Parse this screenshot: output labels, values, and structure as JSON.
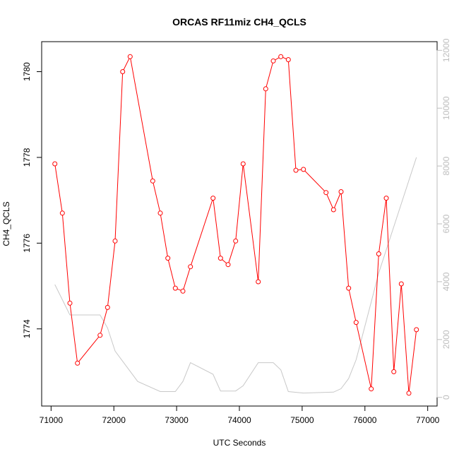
{
  "chart_data": {
    "type": "line",
    "title": "ORCAS RF11miz CH4_QCLS",
    "xlabel": "UTC Seconds",
    "ylabel": "CH4_QCLS",
    "xlim": [
      70850,
      77150
    ],
    "ylim": [
      1772.2,
      1780.7
    ],
    "y2lim": [
      -300,
      12300
    ],
    "x_ticks": [
      71000,
      72000,
      73000,
      74000,
      75000,
      76000,
      77000
    ],
    "y_ticks": [
      1774,
      1776,
      1778,
      1780
    ],
    "y2_ticks": [
      0,
      2000,
      4000,
      6000,
      8000,
      10000,
      12000
    ],
    "grid": false,
    "legend": "none",
    "series": [
      {
        "axis": "left",
        "style": "line-points",
        "color": "#ff0000",
        "x": [
          71060,
          71180,
          71300,
          71420,
          71780,
          71900,
          72020,
          72140,
          72260,
          72620,
          72740,
          72860,
          72980,
          73100,
          73220,
          73580,
          73700,
          73820,
          73940,
          74060,
          74300,
          74420,
          74540,
          74660,
          74780,
          74900,
          75020,
          75380,
          75500,
          75620,
          75740,
          75860,
          76100,
          76220,
          76340,
          76460,
          76580,
          76700,
          76820
        ],
        "y": [
          1777.85,
          1776.7,
          1774.6,
          1773.2,
          1773.85,
          1774.5,
          1776.05,
          1780.0,
          1780.35,
          1777.45,
          1776.7,
          1775.65,
          1774.95,
          1774.88,
          1775.45,
          1777.05,
          1775.65,
          1775.5,
          1776.05,
          1777.85,
          1775.1,
          1779.6,
          1780.25,
          1780.35,
          1780.28,
          1777.7,
          1777.72,
          1777.18,
          1776.78,
          1777.2,
          1774.95,
          1774.15,
          1772.6,
          1775.75,
          1777.05,
          1773.0,
          1775.05,
          1772.5,
          1773.98
        ]
      },
      {
        "axis": "right",
        "style": "line",
        "color": "#c8c8c8",
        "x": [
          71060,
          71300,
          71780,
          71900,
          72020,
          72380,
          72740,
          72980,
          73100,
          73220,
          73580,
          73700,
          73940,
          74060,
          74300,
          74540,
          74660,
          74780,
          75020,
          75500,
          75620,
          75740,
          75860,
          76100,
          76220,
          76820
        ],
        "y": [
          3900,
          2850,
          2850,
          2400,
          1600,
          550,
          200,
          200,
          550,
          1200,
          800,
          220,
          220,
          400,
          1200,
          1200,
          950,
          200,
          150,
          180,
          300,
          650,
          1300,
          3300,
          4300,
          8300
        ]
      }
    ]
  }
}
